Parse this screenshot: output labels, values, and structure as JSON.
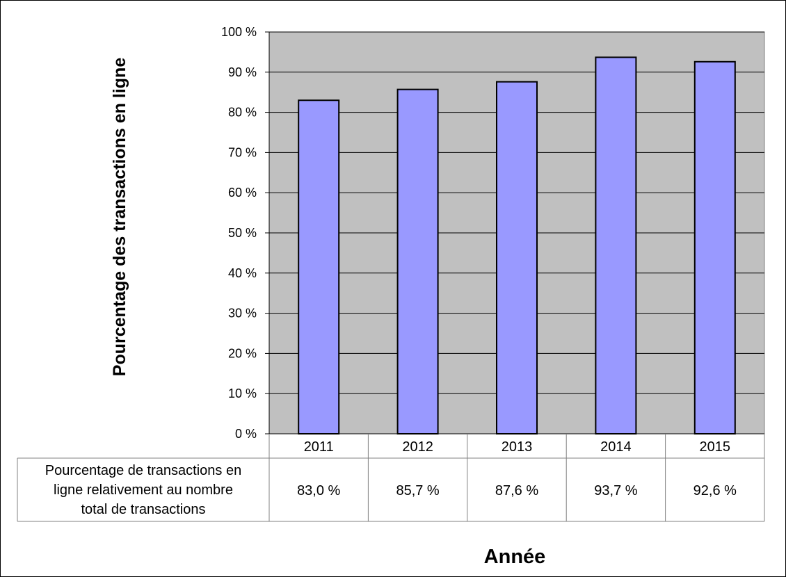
{
  "chart_data": {
    "type": "bar",
    "ylabel": "Pourcentage des transactions en ligne",
    "xlabel": "Année",
    "categories": [
      "2011",
      "2012",
      "2013",
      "2014",
      "2015"
    ],
    "values": [
      83.0,
      85.7,
      87.6,
      93.7,
      92.6
    ],
    "ylim": [
      0,
      100
    ],
    "yticks": [
      0,
      10,
      20,
      30,
      40,
      50,
      60,
      70,
      80,
      90,
      100
    ],
    "ytick_labels": [
      "0 %",
      "10 %",
      "20 %",
      "30 %",
      "40 %",
      "50 %",
      "60 %",
      "70 %",
      "80 %",
      "90 %",
      "100 %"
    ],
    "grid": true,
    "legend": "none",
    "data_table": {
      "row_header_lines": [
        "Pourcentage de transactions en",
        "ligne relativement au nombre",
        "total de transactions"
      ],
      "cells": [
        "83,0 %",
        "85,7 %",
        "87,6 %",
        "93,7 %",
        "92,6 %"
      ]
    },
    "colors": {
      "plot_background": "#C0C0C0",
      "bar_fill": "#9999FF",
      "bar_stroke": "#000000",
      "gridline": "#000000"
    }
  }
}
